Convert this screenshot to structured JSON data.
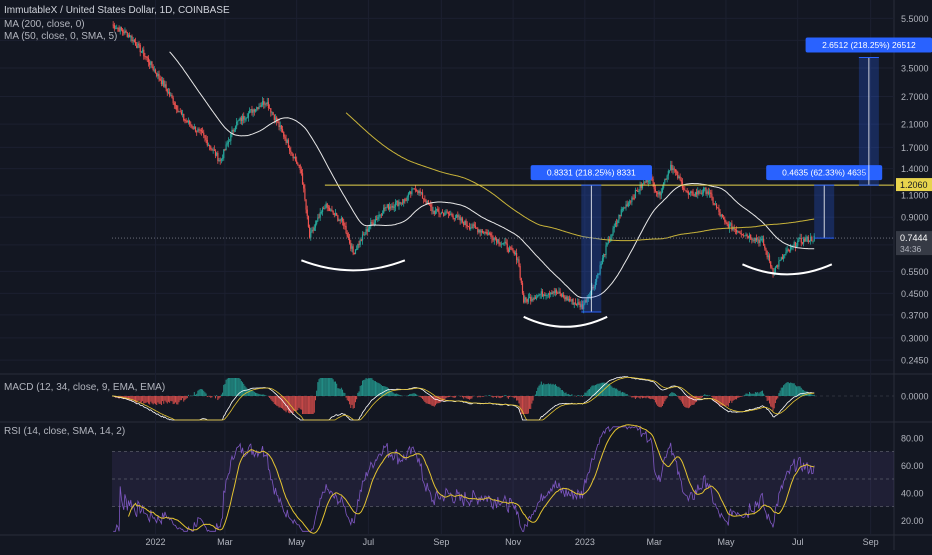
{
  "header": {
    "symbol_line": "ImmutableX / United States Dollar, 1D, COINBASE",
    "ma200_label": "MA (200, close, 0)",
    "ma50_label": "MA (50, close, 0, SMA, 5)"
  },
  "macd": {
    "label": "MACD (12, 34, close, 9, EMA, EMA)",
    "zero_label": "0.0000"
  },
  "rsi": {
    "label": "RSI (14, close, SMA, 14, 2)",
    "ticks": [
      "80.00",
      "60.00",
      "40.00",
      "20.00"
    ],
    "tick_values": [
      80,
      60,
      40,
      20
    ],
    "band": [
      30,
      70
    ]
  },
  "colors": {
    "bg": "#131722",
    "up": "#26a69a",
    "down": "#ef5350",
    "ma50": "#e8e8e8",
    "ma200": "#c9b43a",
    "level": "#e8d44d",
    "measure": "#2962ff",
    "rsi": "#7e57c2",
    "rsi_ma": "#e3c331",
    "price_tag": "#363a45",
    "level_tag": "#e8d44d"
  },
  "price_axis": {
    "ticks": [
      "5.5000",
      "4.5000",
      "3.5000",
      "2.7000",
      "2.1000",
      "1.7000",
      "1.4000",
      "1.1000",
      "0.9000",
      "0.7000",
      "0.5500",
      "0.4500",
      "0.3700",
      "0.3000",
      "0.2450"
    ],
    "tick_values": [
      5.5,
      4.5,
      3.5,
      2.7,
      2.1,
      1.7,
      1.4,
      1.1,
      0.9,
      0.7,
      0.55,
      0.45,
      0.37,
      0.3,
      0.245
    ],
    "current_price": "0.7444",
    "current_price_value": 0.7444,
    "countdown": "34:36",
    "level_price": "1.2060",
    "level_price_value": 1.206
  },
  "time_axis": {
    "labels": [
      "2022",
      "Mar",
      "May",
      "Jul",
      "Sep",
      "Nov",
      "2023",
      "Mar",
      "May",
      "Jul",
      "Sep"
    ]
  },
  "chart_data": {
    "type": "line",
    "title": "ImmutableX / United States Dollar, 1D, COINBASE",
    "y_scale": "log",
    "ylim": [
      0.22,
      6.5
    ],
    "x_range": [
      "2021-11-25",
      "2023-09-20"
    ],
    "series": [
      {
        "name": "IMX/USD close",
        "x": [
          "2021-11-25",
          "2021-12-10",
          "2021-12-25",
          "2022-01-10",
          "2022-01-25",
          "2022-02-10",
          "2022-02-25",
          "2022-03-10",
          "2022-03-25",
          "2022-04-05",
          "2022-04-20",
          "2022-05-05",
          "2022-05-12",
          "2022-05-25",
          "2022-06-10",
          "2022-06-18",
          "2022-07-01",
          "2022-07-15",
          "2022-08-01",
          "2022-08-10",
          "2022-08-25",
          "2022-09-10",
          "2022-09-25",
          "2022-10-10",
          "2022-10-25",
          "2022-11-05",
          "2022-11-10",
          "2022-11-20",
          "2022-12-05",
          "2022-12-20",
          "2022-12-30",
          "2023-01-10",
          "2023-01-20",
          "2023-02-01",
          "2023-02-15",
          "2023-02-25",
          "2023-03-05",
          "2023-03-15",
          "2023-03-30",
          "2023-04-15",
          "2023-04-30",
          "2023-05-15",
          "2023-06-01",
          "2023-06-10",
          "2023-06-20",
          "2023-07-01",
          "2023-07-15"
        ],
        "y": [
          5.2,
          4.7,
          3.8,
          2.9,
          2.2,
          1.9,
          1.5,
          2.1,
          2.4,
          2.6,
          1.9,
          1.35,
          0.75,
          1.0,
          0.85,
          0.65,
          0.82,
          0.98,
          1.05,
          1.18,
          0.95,
          0.92,
          0.83,
          0.78,
          0.7,
          0.62,
          0.42,
          0.44,
          0.46,
          0.42,
          0.4,
          0.5,
          0.7,
          0.95,
          1.15,
          1.3,
          1.1,
          1.45,
          1.1,
          1.15,
          0.85,
          0.78,
          0.72,
          0.55,
          0.64,
          0.72,
          0.7444
        ]
      }
    ],
    "annotations": [
      {
        "label": "0.8331 (218.25%) 8331"
      },
      {
        "label": "0.4635 (62.33%) 4635"
      },
      {
        "label": "2.6512 (218.25%) 26512"
      }
    ]
  }
}
